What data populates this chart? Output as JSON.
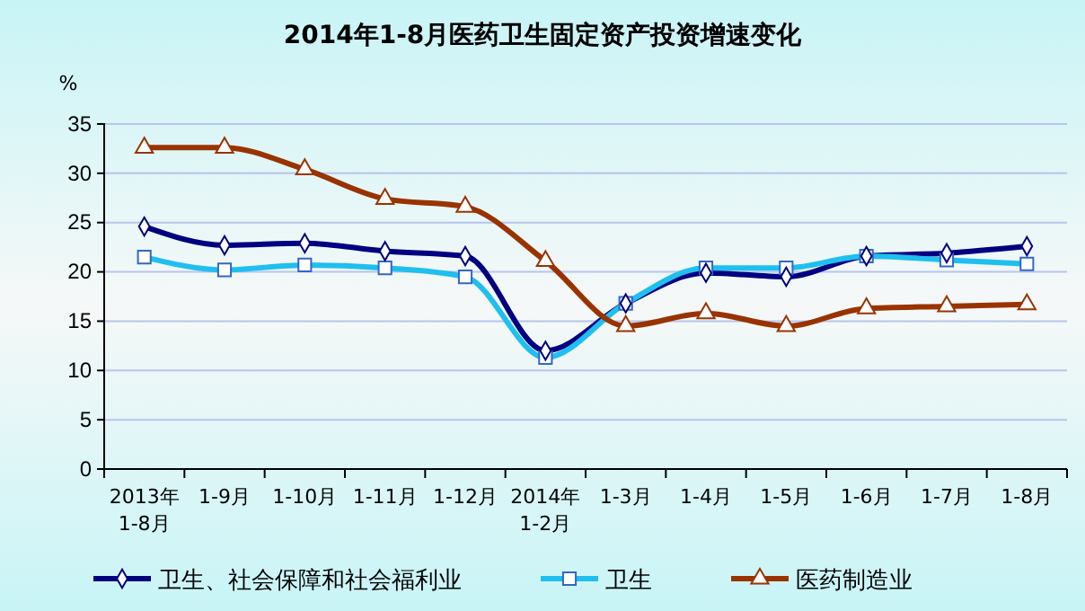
{
  "chart_data": {
    "type": "line",
    "title": "2014年1-8月医药卫生固定资产投资增速变化",
    "ylabel": "%",
    "categories": [
      "2013年\n1-8月",
      "1-9月",
      "1-10月",
      "1-11月",
      "1-12月",
      "2014年\n1-2月",
      "1-3月",
      "1-4月",
      "1-5月",
      "1-6月",
      "1-7月",
      "1-8月"
    ],
    "series": [
      {
        "name": "卫生、社会保障和社会福利业",
        "color": "#000080",
        "marker": "diamond",
        "values": [
          24.6,
          22.7,
          22.9,
          22.1,
          21.6,
          12.0,
          16.8,
          19.9,
          19.5,
          21.6,
          21.9,
          22.6
        ]
      },
      {
        "name": "卫生",
        "color": "#1fbfef",
        "marker": "square",
        "values": [
          21.5,
          20.2,
          20.7,
          20.4,
          19.5,
          11.3,
          16.8,
          20.4,
          20.4,
          21.6,
          21.2,
          20.8
        ]
      },
      {
        "name": "医药制造业",
        "color": "#993300",
        "marker": "triangle",
        "values": [
          32.6,
          32.6,
          30.4,
          27.4,
          26.6,
          21.1,
          14.5,
          15.8,
          14.5,
          16.3,
          16.5,
          16.7
        ]
      }
    ],
    "ylim": [
      0,
      35
    ],
    "yticks": [
      0,
      5,
      10,
      15,
      20,
      25,
      30,
      35
    ],
    "grid": "y",
    "legend": "bottom",
    "line_style": "solid"
  }
}
